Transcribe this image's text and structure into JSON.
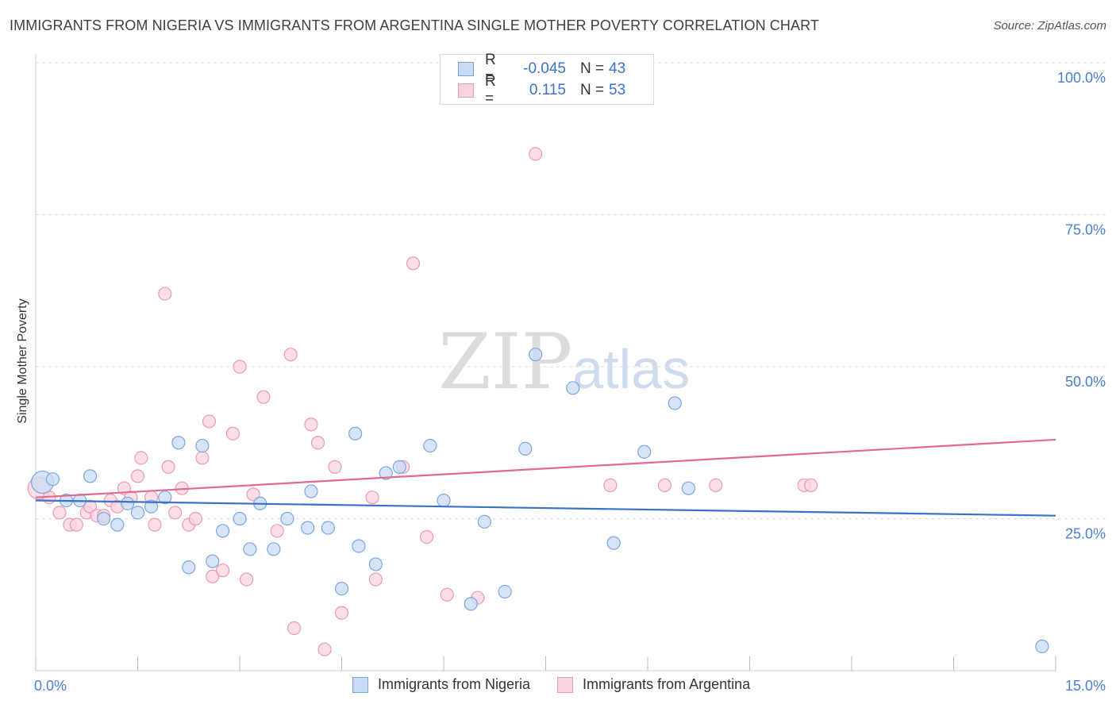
{
  "header": {
    "title": "IMMIGRANTS FROM NIGERIA VS IMMIGRANTS FROM ARGENTINA SINGLE MOTHER POVERTY CORRELATION CHART",
    "source": "Source: ZipAtlas.com"
  },
  "watermark": {
    "zip": "ZIP",
    "atlas": "atlas"
  },
  "legend": {
    "rows": [
      {
        "r_label": "R =",
        "r_value": "-0.045",
        "n_label": "N =",
        "n_value": "43"
      },
      {
        "r_label": "R =",
        "r_value": "0.115",
        "n_label": "N =",
        "n_value": "53"
      }
    ]
  },
  "colors": {
    "nigeria_fill": "#c9dbf5",
    "nigeria_stroke": "#7aa6e0",
    "nigeria_line": "#3a72c8",
    "argentina_fill": "#f9d3de",
    "argentina_stroke": "#eb9ab3",
    "argentina_line": "#e26a92",
    "grid": "#dddddd",
    "tick_text": "#4a7fd0"
  },
  "chart_data": {
    "type": "scatter",
    "title": "IMMIGRANTS FROM NIGERIA VS IMMIGRANTS FROM ARGENTINA SINGLE MOTHER POVERTY CORRELATION CHART",
    "xlabel": "",
    "ylabel": "Single Mother Poverty",
    "xlim": [
      0,
      15
    ],
    "ylim": [
      0,
      100
    ],
    "x_tick_labels": [
      "0.0%",
      "15.0%"
    ],
    "y_tick_labels": [
      "100.0%",
      "75.0%",
      "50.0%",
      "25.0%"
    ],
    "y_ticks": [
      100,
      75,
      50,
      25
    ],
    "grid": true,
    "legend_position": "top-center",
    "series": [
      {
        "name": "Immigrants from Nigeria",
        "r": -0.045,
        "n": 43,
        "trend": {
          "x": [
            0,
            15
          ],
          "y": [
            28.0,
            25.5
          ]
        },
        "points": [
          {
            "x": 0.1,
            "y": 31,
            "big": true
          },
          {
            "x": 0.25,
            "y": 31.5
          },
          {
            "x": 0.45,
            "y": 28
          },
          {
            "x": 0.8,
            "y": 32
          },
          {
            "x": 0.65,
            "y": 28
          },
          {
            "x": 1.0,
            "y": 25
          },
          {
            "x": 1.2,
            "y": 24
          },
          {
            "x": 1.35,
            "y": 27.5
          },
          {
            "x": 1.5,
            "y": 26
          },
          {
            "x": 1.7,
            "y": 27
          },
          {
            "x": 1.9,
            "y": 28.5
          },
          {
            "x": 2.1,
            "y": 37.5
          },
          {
            "x": 2.25,
            "y": 17
          },
          {
            "x": 2.45,
            "y": 37
          },
          {
            "x": 2.6,
            "y": 18
          },
          {
            "x": 2.75,
            "y": 23
          },
          {
            "x": 3.0,
            "y": 25
          },
          {
            "x": 3.15,
            "y": 20
          },
          {
            "x": 3.3,
            "y": 27.5
          },
          {
            "x": 3.5,
            "y": 20
          },
          {
            "x": 3.7,
            "y": 25
          },
          {
            "x": 4.0,
            "y": 23.5
          },
          {
            "x": 4.05,
            "y": 29.5
          },
          {
            "x": 4.3,
            "y": 23.5
          },
          {
            "x": 4.5,
            "y": 13.5
          },
          {
            "x": 4.7,
            "y": 39
          },
          {
            "x": 4.75,
            "y": 20.5
          },
          {
            "x": 5.0,
            "y": 17.5
          },
          {
            "x": 5.15,
            "y": 32.5
          },
          {
            "x": 5.35,
            "y": 33.5
          },
          {
            "x": 5.8,
            "y": 37
          },
          {
            "x": 6.0,
            "y": 28
          },
          {
            "x": 6.4,
            "y": 11
          },
          {
            "x": 6.6,
            "y": 24.5
          },
          {
            "x": 6.9,
            "y": 13
          },
          {
            "x": 7.2,
            "y": 36.5
          },
          {
            "x": 7.35,
            "y": 52
          },
          {
            "x": 7.9,
            "y": 46.5
          },
          {
            "x": 8.5,
            "y": 21
          },
          {
            "x": 8.95,
            "y": 36
          },
          {
            "x": 9.4,
            "y": 44
          },
          {
            "x": 9.6,
            "y": 30
          },
          {
            "x": 14.8,
            "y": 4
          }
        ]
      },
      {
        "name": "Immigrants from Argentina",
        "r": 0.115,
        "n": 53,
        "trend": {
          "x": [
            0,
            15
          ],
          "y": [
            28.5,
            38.0
          ]
        },
        "points": [
          {
            "x": 0.05,
            "y": 30,
            "big": true
          },
          {
            "x": 0.2,
            "y": 28.5
          },
          {
            "x": 0.35,
            "y": 26
          },
          {
            "x": 0.5,
            "y": 24
          },
          {
            "x": 0.6,
            "y": 24
          },
          {
            "x": 0.75,
            "y": 26
          },
          {
            "x": 0.8,
            "y": 27
          },
          {
            "x": 0.9,
            "y": 25.5
          },
          {
            "x": 1.0,
            "y": 25.5
          },
          {
            "x": 1.1,
            "y": 28
          },
          {
            "x": 1.2,
            "y": 27
          },
          {
            "x": 1.3,
            "y": 30
          },
          {
            "x": 1.4,
            "y": 28.5
          },
          {
            "x": 1.5,
            "y": 32
          },
          {
            "x": 1.55,
            "y": 35
          },
          {
            "x": 1.7,
            "y": 28.5
          },
          {
            "x": 1.75,
            "y": 24
          },
          {
            "x": 1.9,
            "y": 62
          },
          {
            "x": 1.95,
            "y": 33.5
          },
          {
            "x": 2.05,
            "y": 26
          },
          {
            "x": 2.15,
            "y": 30
          },
          {
            "x": 2.25,
            "y": 24
          },
          {
            "x": 2.35,
            "y": 25
          },
          {
            "x": 2.45,
            "y": 35
          },
          {
            "x": 2.55,
            "y": 41
          },
          {
            "x": 2.6,
            "y": 15.5
          },
          {
            "x": 2.75,
            "y": 16.5
          },
          {
            "x": 2.9,
            "y": 39
          },
          {
            "x": 3.0,
            "y": 50
          },
          {
            "x": 3.1,
            "y": 15
          },
          {
            "x": 3.2,
            "y": 29
          },
          {
            "x": 3.35,
            "y": 45
          },
          {
            "x": 3.55,
            "y": 23
          },
          {
            "x": 3.75,
            "y": 52
          },
          {
            "x": 3.8,
            "y": 7
          },
          {
            "x": 4.05,
            "y": 40.5
          },
          {
            "x": 4.15,
            "y": 37.5
          },
          {
            "x": 4.25,
            "y": 3.5
          },
          {
            "x": 4.4,
            "y": 33.5
          },
          {
            "x": 4.5,
            "y": 9.5
          },
          {
            "x": 4.95,
            "y": 28.5
          },
          {
            "x": 5.0,
            "y": 15
          },
          {
            "x": 5.4,
            "y": 33.5
          },
          {
            "x": 5.55,
            "y": 67
          },
          {
            "x": 5.75,
            "y": 22
          },
          {
            "x": 6.05,
            "y": 12.5
          },
          {
            "x": 6.5,
            "y": 12
          },
          {
            "x": 7.35,
            "y": 85
          },
          {
            "x": 8.45,
            "y": 30.5
          },
          {
            "x": 9.25,
            "y": 30.5
          },
          {
            "x": 10.0,
            "y": 30.5
          },
          {
            "x": 11.3,
            "y": 30.5
          },
          {
            "x": 11.4,
            "y": 30.5
          }
        ]
      }
    ]
  }
}
